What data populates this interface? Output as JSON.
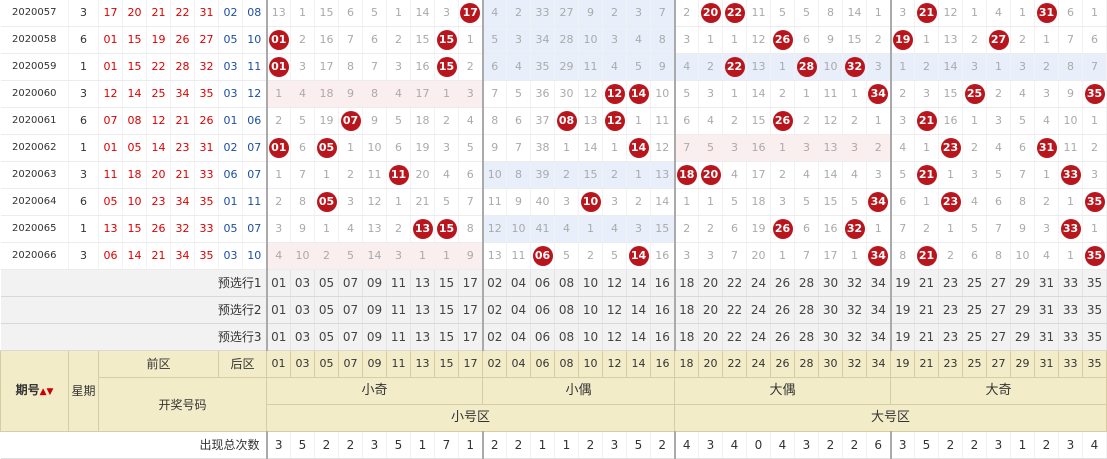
{
  "rows": [
    {
      "period": "2020057",
      "week": "3",
      "front": [
        "17",
        "20",
        "21",
        "22",
        "31"
      ],
      "back": [
        "02",
        "08"
      ],
      "cells": [
        "13",
        "1",
        "15",
        "6",
        "5",
        "1",
        "14",
        "3",
        "●17",
        "4",
        "2",
        "33",
        "27",
        "9",
        "2",
        "3",
        "7",
        "2",
        "●20",
        "●22",
        "11",
        "5",
        "5",
        "8",
        "14",
        "1",
        "3",
        "●21",
        "12",
        "1",
        "4",
        "1",
        "●31",
        "6",
        "1"
      ],
      "tint": [
        0,
        0,
        0,
        0,
        0,
        0,
        0,
        0,
        0,
        2,
        2,
        2,
        2,
        2,
        2,
        2,
        2,
        0,
        0,
        0,
        0,
        0,
        0,
        0,
        0,
        0,
        0,
        0,
        0,
        0,
        0,
        0,
        0,
        0,
        0
      ]
    },
    {
      "period": "2020058",
      "week": "6",
      "front": [
        "01",
        "15",
        "19",
        "26",
        "27"
      ],
      "back": [
        "05",
        "10"
      ],
      "cells": [
        "●01",
        "2",
        "16",
        "7",
        "6",
        "2",
        "15",
        "●15",
        "1",
        "5",
        "3",
        "34",
        "28",
        "10",
        "3",
        "4",
        "8",
        "3",
        "1",
        "1",
        "12",
        "●26",
        "6",
        "9",
        "15",
        "2",
        "●19",
        "1",
        "13",
        "2",
        "●27",
        "2",
        "1",
        "7",
        "6"
      ],
      "tint": [
        0,
        0,
        0,
        0,
        0,
        0,
        0,
        0,
        0,
        2,
        2,
        2,
        2,
        2,
        2,
        2,
        2,
        0,
        0,
        0,
        0,
        0,
        0,
        0,
        0,
        0,
        0,
        0,
        0,
        0,
        0,
        0,
        0,
        0,
        0
      ]
    },
    {
      "period": "2020059",
      "week": "1",
      "front": [
        "01",
        "15",
        "22",
        "28",
        "32"
      ],
      "back": [
        "03",
        "11"
      ],
      "cells": [
        "●01",
        "3",
        "17",
        "8",
        "7",
        "3",
        "16",
        "●15",
        "2",
        "6",
        "4",
        "35",
        "29",
        "11",
        "4",
        "5",
        "9",
        "4",
        "2",
        "●22",
        "13",
        "1",
        "●28",
        "10",
        "●32",
        "3",
        "1",
        "2",
        "14",
        "3",
        "1",
        "3",
        "2",
        "8",
        "7"
      ],
      "tint": [
        0,
        0,
        0,
        0,
        0,
        0,
        0,
        0,
        0,
        2,
        2,
        2,
        2,
        2,
        2,
        2,
        2,
        2,
        2,
        2,
        2,
        2,
        2,
        2,
        2,
        2,
        2,
        2,
        2,
        2,
        2,
        2,
        2,
        2,
        2
      ]
    },
    {
      "period": "2020060",
      "week": "3",
      "front": [
        "12",
        "14",
        "25",
        "34",
        "35"
      ],
      "back": [
        "03",
        "12"
      ],
      "cells": [
        "1",
        "4",
        "18",
        "9",
        "8",
        "4",
        "17",
        "1",
        "3",
        "7",
        "5",
        "36",
        "30",
        "12",
        "●12",
        "●14",
        "10",
        "5",
        "3",
        "1",
        "14",
        "2",
        "1",
        "11",
        "1",
        "●34",
        "2",
        "3",
        "15",
        "●25",
        "2",
        "4",
        "3",
        "9",
        "●35"
      ],
      "tint": [
        1,
        1,
        1,
        1,
        1,
        1,
        1,
        1,
        1,
        0,
        0,
        0,
        0,
        0,
        0,
        0,
        0,
        0,
        0,
        0,
        0,
        0,
        0,
        0,
        0,
        0,
        0,
        0,
        0,
        0,
        0,
        0,
        0,
        0,
        0
      ]
    },
    {
      "period": "2020061",
      "week": "6",
      "front": [
        "07",
        "08",
        "12",
        "21",
        "26"
      ],
      "back": [
        "01",
        "06"
      ],
      "cells": [
        "2",
        "5",
        "19",
        "●07",
        "9",
        "5",
        "18",
        "2",
        "4",
        "8",
        "6",
        "37",
        "●08",
        "13",
        "●12",
        "1",
        "11",
        "6",
        "4",
        "2",
        "15",
        "●26",
        "2",
        "12",
        "2",
        "1",
        "3",
        "●21",
        "16",
        "1",
        "3",
        "5",
        "4",
        "10",
        "1"
      ],
      "tint": [
        0,
        0,
        0,
        0,
        0,
        0,
        0,
        0,
        0,
        0,
        0,
        0,
        0,
        0,
        0,
        0,
        0,
        0,
        0,
        0,
        0,
        0,
        0,
        0,
        0,
        0,
        0,
        0,
        0,
        0,
        0,
        0,
        0,
        0,
        0
      ]
    },
    {
      "period": "2020062",
      "week": "1",
      "front": [
        "01",
        "05",
        "14",
        "23",
        "31"
      ],
      "back": [
        "02",
        "07"
      ],
      "cells": [
        "●01",
        "6",
        "●05",
        "1",
        "10",
        "6",
        "19",
        "3",
        "5",
        "9",
        "7",
        "38",
        "1",
        "14",
        "1",
        "●14",
        "12",
        "7",
        "5",
        "3",
        "16",
        "1",
        "3",
        "13",
        "3",
        "2",
        "4",
        "1",
        "●23",
        "2",
        "4",
        "6",
        "●31",
        "11",
        "2"
      ],
      "tint": [
        0,
        0,
        0,
        0,
        0,
        0,
        0,
        0,
        0,
        0,
        0,
        0,
        0,
        0,
        0,
        0,
        0,
        1,
        1,
        1,
        1,
        1,
        1,
        1,
        1,
        1,
        0,
        0,
        0,
        0,
        0,
        0,
        0,
        0,
        0
      ]
    },
    {
      "period": "2020063",
      "week": "3",
      "front": [
        "11",
        "18",
        "20",
        "21",
        "33"
      ],
      "back": [
        "06",
        "07"
      ],
      "cells": [
        "1",
        "7",
        "1",
        "2",
        "11",
        "●11",
        "20",
        "4",
        "6",
        "10",
        "8",
        "39",
        "2",
        "15",
        "2",
        "1",
        "13",
        "●18",
        "●20",
        "4",
        "17",
        "2",
        "4",
        "14",
        "4",
        "3",
        "5",
        "●21",
        "1",
        "3",
        "5",
        "7",
        "1",
        "●33",
        "3"
      ],
      "tint": [
        0,
        0,
        0,
        0,
        0,
        0,
        0,
        0,
        0,
        2,
        2,
        2,
        2,
        2,
        2,
        2,
        2,
        0,
        0,
        0,
        0,
        0,
        0,
        0,
        0,
        0,
        0,
        0,
        0,
        0,
        0,
        0,
        0,
        0,
        0
      ]
    },
    {
      "period": "2020064",
      "week": "6",
      "front": [
        "05",
        "10",
        "23",
        "34",
        "35"
      ],
      "back": [
        "01",
        "11"
      ],
      "cells": [
        "2",
        "8",
        "●05",
        "3",
        "12",
        "1",
        "21",
        "5",
        "7",
        "11",
        "9",
        "40",
        "3",
        "●10",
        "3",
        "2",
        "14",
        "1",
        "1",
        "5",
        "18",
        "3",
        "5",
        "15",
        "5",
        "●34",
        "6",
        "1",
        "●23",
        "4",
        "6",
        "8",
        "2",
        "1",
        "●35"
      ],
      "tint": [
        0,
        0,
        0,
        0,
        0,
        0,
        0,
        0,
        0,
        0,
        0,
        0,
        0,
        0,
        0,
        0,
        0,
        0,
        0,
        0,
        0,
        0,
        0,
        0,
        0,
        0,
        0,
        0,
        0,
        0,
        0,
        0,
        0,
        0,
        0
      ]
    },
    {
      "period": "2020065",
      "week": "1",
      "front": [
        "13",
        "15",
        "26",
        "32",
        "33"
      ],
      "back": [
        "05",
        "07"
      ],
      "cells": [
        "3",
        "9",
        "1",
        "4",
        "13",
        "2",
        "●13",
        "●15",
        "8",
        "12",
        "10",
        "41",
        "4",
        "1",
        "4",
        "3",
        "15",
        "2",
        "2",
        "6",
        "19",
        "●26",
        "6",
        "16",
        "●32",
        "1",
        "7",
        "2",
        "1",
        "5",
        "7",
        "9",
        "3",
        "●33",
        "1"
      ],
      "tint": [
        0,
        0,
        0,
        0,
        0,
        0,
        0,
        0,
        0,
        2,
        2,
        2,
        2,
        2,
        2,
        2,
        2,
        0,
        0,
        0,
        0,
        0,
        0,
        0,
        0,
        0,
        0,
        0,
        0,
        0,
        0,
        0,
        0,
        0,
        0
      ]
    },
    {
      "period": "2020066",
      "week": "3",
      "front": [
        "06",
        "14",
        "21",
        "34",
        "35"
      ],
      "back": [
        "03",
        "10"
      ],
      "cells": [
        "4",
        "10",
        "2",
        "5",
        "14",
        "3",
        "1",
        "1",
        "9",
        "13",
        "11",
        "●06",
        "5",
        "2",
        "5",
        "●14",
        "16",
        "3",
        "3",
        "7",
        "20",
        "1",
        "7",
        "17",
        "1",
        "●34",
        "8",
        "●21",
        "2",
        "6",
        "8",
        "10",
        "4",
        "1",
        "●35"
      ],
      "tint": [
        1,
        1,
        1,
        1,
        1,
        1,
        1,
        1,
        1,
        0,
        0,
        0,
        0,
        0,
        0,
        0,
        0,
        0,
        0,
        0,
        0,
        0,
        0,
        0,
        0,
        0,
        0,
        0,
        0,
        0,
        0,
        0,
        0,
        0,
        0
      ]
    }
  ],
  "preselect": [
    {
      "label": "预选行1",
      "nums": [
        "01",
        "03",
        "05",
        "07",
        "09",
        "11",
        "13",
        "15",
        "17",
        "02",
        "04",
        "06",
        "08",
        "10",
        "12",
        "14",
        "16",
        "18",
        "20",
        "22",
        "24",
        "26",
        "28",
        "30",
        "32",
        "34",
        "19",
        "21",
        "23",
        "25",
        "27",
        "29",
        "31",
        "33",
        "35"
      ]
    },
    {
      "label": "预选行2",
      "nums": [
        "01",
        "03",
        "05",
        "07",
        "09",
        "11",
        "13",
        "15",
        "17",
        "02",
        "04",
        "06",
        "08",
        "10",
        "12",
        "14",
        "16",
        "18",
        "20",
        "22",
        "24",
        "26",
        "28",
        "30",
        "32",
        "34",
        "19",
        "21",
        "23",
        "25",
        "27",
        "29",
        "31",
        "33",
        "35"
      ]
    },
    {
      "label": "预选行3",
      "nums": [
        "01",
        "03",
        "05",
        "07",
        "09",
        "11",
        "13",
        "15",
        "17",
        "02",
        "04",
        "06",
        "08",
        "10",
        "12",
        "14",
        "16",
        "18",
        "20",
        "22",
        "24",
        "26",
        "28",
        "30",
        "32",
        "34",
        "19",
        "21",
        "23",
        "25",
        "27",
        "29",
        "31",
        "33",
        "35"
      ]
    }
  ],
  "header": {
    "period_label": "期号",
    "sort_icon": "▲▼",
    "week_label": "星期",
    "front_label": "前区",
    "back_label": "后区",
    "draw_label": "开奖号码",
    "ticks": [
      "01",
      "03",
      "05",
      "07",
      "09",
      "11",
      "13",
      "15",
      "17",
      "02",
      "04",
      "06",
      "08",
      "10",
      "12",
      "14",
      "16",
      "18",
      "20",
      "22",
      "24",
      "26",
      "28",
      "30",
      "32",
      "34",
      "19",
      "21",
      "23",
      "25",
      "27",
      "29",
      "31",
      "33",
      "35"
    ],
    "groups": [
      "小奇",
      "小偶",
      "大偶",
      "大奇"
    ],
    "zones": [
      "小号区",
      "大号区"
    ]
  },
  "totals": {
    "label": "出现总次数",
    "values": [
      "3",
      "5",
      "2",
      "2",
      "3",
      "5",
      "1",
      "7",
      "1",
      "2",
      "2",
      "1",
      "1",
      "2",
      "3",
      "5",
      "2",
      "4",
      "3",
      "4",
      "0",
      "4",
      "3",
      "2",
      "2",
      "6",
      "3",
      "5",
      "2",
      "2",
      "3",
      "1",
      "2",
      "3",
      "4"
    ]
  },
  "colors": {
    "ball": "#b8151d",
    "front_number": "#dd0000",
    "back_number": "#1d4fa3",
    "header_bg": "#f3ecc9",
    "preselect_bg": "#f2f2f2"
  }
}
